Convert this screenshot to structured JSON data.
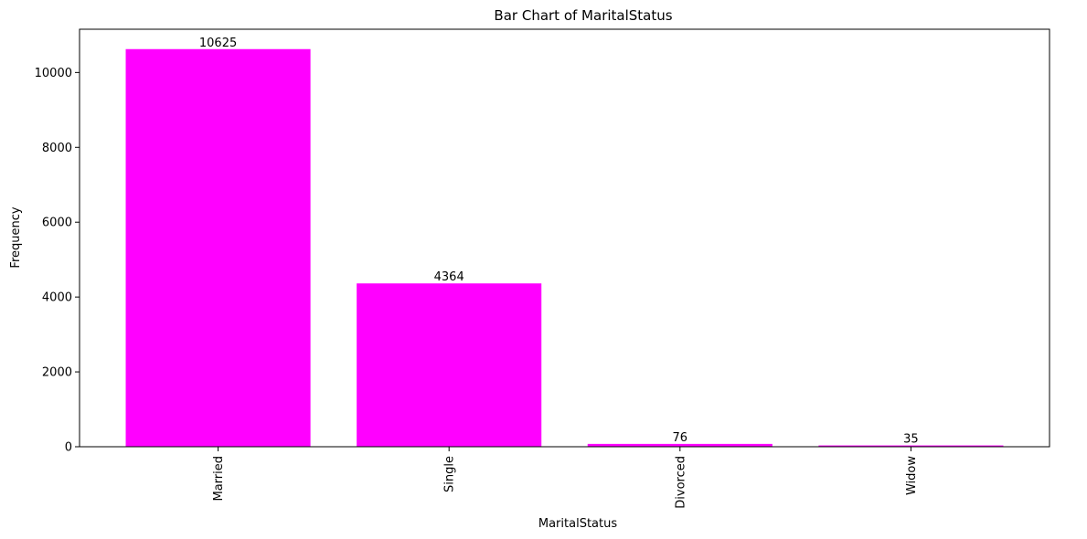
{
  "chart_data": {
    "type": "bar",
    "title": "Bar Chart of MaritalStatus",
    "xlabel": "MaritalStatus",
    "ylabel": "Frequency",
    "categories": [
      "Married",
      "Single",
      "Divorced",
      "Widow"
    ],
    "values": [
      10625,
      4364,
      76,
      35
    ],
    "data_labels": [
      "10625",
      "4364",
      "76",
      "35"
    ],
    "ylim": [
      0,
      11156
    ],
    "yticks": [
      0,
      2000,
      4000,
      6000,
      8000,
      10000
    ],
    "ytick_labels": [
      "0",
      "2000",
      "4000",
      "6000",
      "8000",
      "10000"
    ],
    "bar_color": "#ff00ff",
    "grid": false,
    "legend": "none",
    "xtick_rotation": 90
  }
}
